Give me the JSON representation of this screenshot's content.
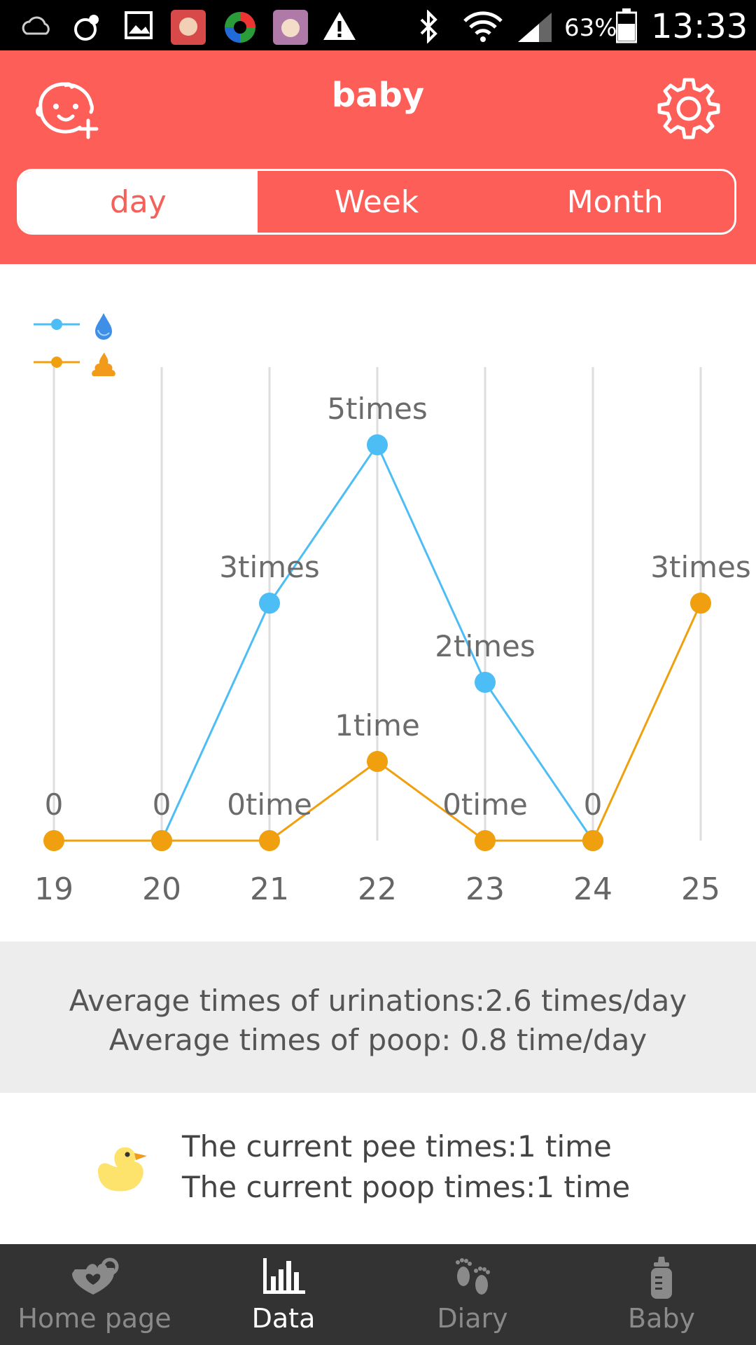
{
  "status_bar": {
    "battery_text": "63%",
    "time": "13:33"
  },
  "header": {
    "title": "baby",
    "add_baby_icon": "baby-face-plus-icon",
    "settings_icon": "gear-icon"
  },
  "tabs": [
    {
      "label": "day",
      "active": true
    },
    {
      "label": "Week",
      "active": false
    },
    {
      "label": "Month",
      "active": false
    }
  ],
  "legend": [
    {
      "icon": "water-drop-icon",
      "color": "#4dbdf5",
      "series": "pee"
    },
    {
      "icon": "poop-icon",
      "color": "#f0a00e",
      "series": "poop"
    }
  ],
  "chart_data": {
    "type": "line",
    "x": [
      "19",
      "20",
      "21",
      "22",
      "23",
      "24",
      "25"
    ],
    "ylim": [
      0,
      5
    ],
    "grid": "vertical",
    "legend_position": "top-left",
    "series": [
      {
        "key": "pee",
        "color": "#4dbdf5",
        "values": [
          null,
          0,
          3,
          5,
          2,
          0,
          null
        ],
        "labels": [
          "",
          "",
          "3times",
          "5times",
          "2times",
          "",
          ""
        ]
      },
      {
        "key": "poop",
        "color": "#f0a00e",
        "values": [
          0,
          0,
          0,
          1,
          0,
          0,
          3
        ],
        "labels": [
          "0",
          "0",
          "0time",
          "1time",
          "0time",
          "0",
          "3times"
        ]
      }
    ]
  },
  "averages": {
    "pee": "Average times of urinations:2.6 times/day",
    "poop": "Average times of poop: 0.8 time/day"
  },
  "current": {
    "icon": "duck-icon",
    "pee": "The current pee times:1 time",
    "poop": "The current poop times:1 time"
  },
  "bottom_nav": [
    {
      "label": "Home page",
      "icon": "home-heart-icon",
      "active": false
    },
    {
      "label": "Data",
      "icon": "bar-chart-icon",
      "active": true
    },
    {
      "label": "Diary",
      "icon": "footprints-icon",
      "active": false
    },
    {
      "label": "Baby",
      "icon": "baby-bottle-icon",
      "active": false
    }
  ]
}
